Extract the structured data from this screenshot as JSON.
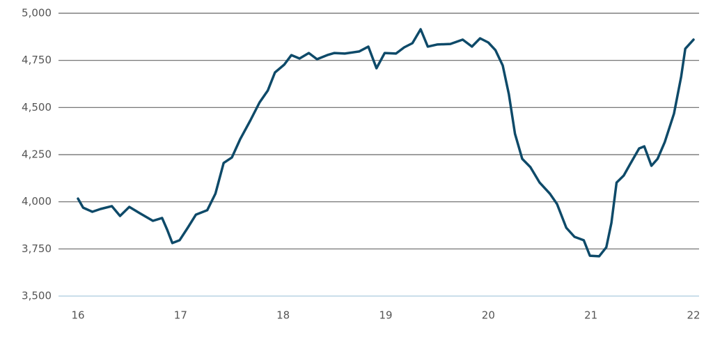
{
  "chart_data": {
    "type": "line",
    "x": [
      16.0,
      16.05,
      16.14,
      16.22,
      16.33,
      16.41,
      16.5,
      16.6,
      16.73,
      16.82,
      16.87,
      16.92,
      16.99,
      17.07,
      17.15,
      17.26,
      17.34,
      17.42,
      17.5,
      17.58,
      17.68,
      17.77,
      17.85,
      17.92,
      18.01,
      18.08,
      18.16,
      18.25,
      18.33,
      18.43,
      18.5,
      18.6,
      18.74,
      18.83,
      18.91,
      18.99,
      19.1,
      19.18,
      19.26,
      19.34,
      19.41,
      19.5,
      19.63,
      19.75,
      19.84,
      19.92,
      20.0,
      20.07,
      20.14,
      20.2,
      20.26,
      20.33,
      20.41,
      20.5,
      20.6,
      20.67,
      20.76,
      20.84,
      20.93,
      20.99,
      21.08,
      21.15,
      21.2,
      21.25,
      21.32,
      21.38,
      21.47,
      21.52,
      21.59,
      21.65,
      21.72,
      21.81,
      21.88,
      21.92,
      22.0
    ],
    "series": [
      {
        "color": "#0e4a69",
        "values": [
          4017,
          3969,
          3947,
          3962,
          3977,
          3925,
          3973,
          3940,
          3899,
          3914,
          3851,
          3781,
          3796,
          3862,
          3932,
          3955,
          4043,
          4206,
          4235,
          4331,
          4431,
          4527,
          4590,
          4686,
          4727,
          4778,
          4760,
          4789,
          4756,
          4778,
          4789,
          4786,
          4797,
          4823,
          4708,
          4789,
          4786,
          4819,
          4841,
          4915,
          4823,
          4834,
          4837,
          4860,
          4823,
          4867,
          4845,
          4804,
          4723,
          4571,
          4361,
          4228,
          4184,
          4102,
          4043,
          3988,
          3862,
          3814,
          3796,
          3714,
          3711,
          3759,
          3888,
          4102,
          4139,
          4198,
          4283,
          4294,
          4191,
          4228,
          4316,
          4468,
          4664,
          4812,
          4860
        ]
      }
    ],
    "xlim": [
      16,
      22
    ],
    "xticks": [
      16,
      17,
      18,
      19,
      20,
      21,
      22
    ],
    "ylim": [
      3500,
      5000
    ],
    "yticks": [
      {
        "value": 3500,
        "label": "3,500"
      },
      {
        "value": 3750,
        "label": "3,750"
      },
      {
        "value": 4000,
        "label": "4,000"
      },
      {
        "value": 4250,
        "label": "4,250"
      },
      {
        "value": 4500,
        "label": "4,500"
      },
      {
        "value": 4750,
        "label": "4,750"
      },
      {
        "value": 5000,
        "label": "5,000"
      }
    ],
    "grid": true
  }
}
